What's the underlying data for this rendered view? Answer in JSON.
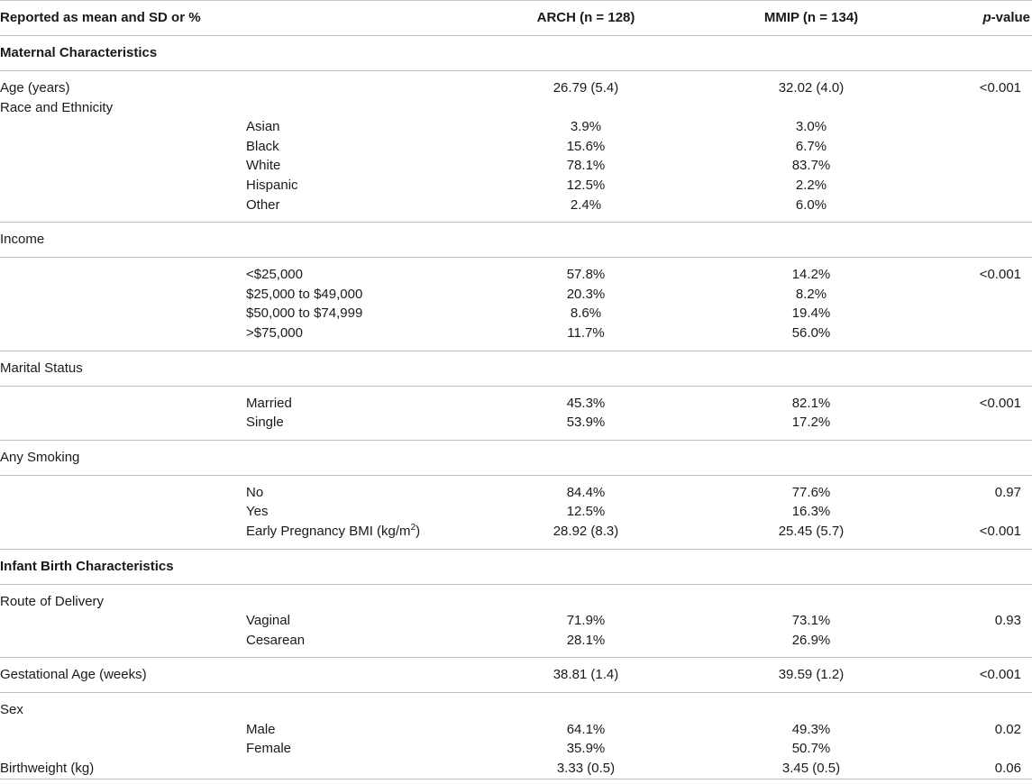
{
  "header": {
    "col1": "Reported as mean and SD or %",
    "col3": "ARCH (n = 128)",
    "col4": "MMIP (n = 134)",
    "col5_italic": "p",
    "col5_rest": "-value"
  },
  "sections": {
    "maternal": "Maternal Characteristics",
    "infant": "Infant Birth Characteristics"
  },
  "rows": {
    "age": {
      "label": "Age (years)",
      "arch": "26.79 (5.4)",
      "mmip": "32.02 (4.0)",
      "p": "<0.001"
    },
    "race": {
      "label": "Race and Ethnicity"
    },
    "asian": {
      "label": "Asian",
      "arch": "3.9%",
      "mmip": "3.0%"
    },
    "black": {
      "label": "Black",
      "arch": "15.6%",
      "mmip": "6.7%"
    },
    "white": {
      "label": "White",
      "arch": "78.1%",
      "mmip": "83.7%"
    },
    "hispanic": {
      "label": "Hispanic",
      "arch": "12.5%",
      "mmip": "2.2%"
    },
    "other": {
      "label": "Other",
      "arch": "2.4%",
      "mmip": "6.0%"
    },
    "income": {
      "label": "Income"
    },
    "inc1": {
      "label": "<$25,000",
      "arch": "57.8%",
      "mmip": "14.2%",
      "p": "<0.001"
    },
    "inc2": {
      "label": "$25,000 to $49,000",
      "arch": "20.3%",
      "mmip": "8.2%"
    },
    "inc3": {
      "label": "$50,000 to $74,999",
      "arch": "8.6%",
      "mmip": "19.4%"
    },
    "inc4": {
      "label": ">$75,000",
      "arch": "11.7%",
      "mmip": "56.0%"
    },
    "marital": {
      "label": "Marital Status"
    },
    "married": {
      "label": "Married",
      "arch": "45.3%",
      "mmip": "82.1%",
      "p": "<0.001"
    },
    "single": {
      "label": "Single",
      "arch": "53.9%",
      "mmip": "17.2%"
    },
    "smoking": {
      "label": "Any Smoking"
    },
    "no": {
      "label": "No",
      "arch": "84.4%",
      "mmip": "77.6%",
      "p": "0.97"
    },
    "yes": {
      "label": "Yes",
      "arch": "12.5%",
      "mmip": "16.3%"
    },
    "bmi": {
      "label": "Early Pregnancy BMI (kg/m",
      "sup": "2",
      "close": ")",
      "arch": "28.92 (8.3)",
      "mmip": "25.45 (5.7)",
      "p": "<0.001"
    },
    "route": {
      "label": "Route of Delivery"
    },
    "vaginal": {
      "label": "Vaginal",
      "arch": "71.9%",
      "mmip": "73.1%",
      "p": "0.93"
    },
    "cesarean": {
      "label": "Cesarean",
      "arch": "28.1%",
      "mmip": "26.9%"
    },
    "gest": {
      "label": "Gestational Age (weeks)",
      "arch": "38.81 (1.4)",
      "mmip": "39.59 (1.2)",
      "p": "<0.001"
    },
    "sex": {
      "label": "Sex"
    },
    "male": {
      "label": "Male",
      "arch": "64.1%",
      "mmip": "49.3%",
      "p": "0.02"
    },
    "female": {
      "label": "Female",
      "arch": "35.9%",
      "mmip": "50.7%"
    },
    "bw": {
      "label": "Birthweight (kg)",
      "arch": "3.33 (0.5)",
      "mmip": "3.45 (0.5)",
      "p": "0.06"
    }
  }
}
